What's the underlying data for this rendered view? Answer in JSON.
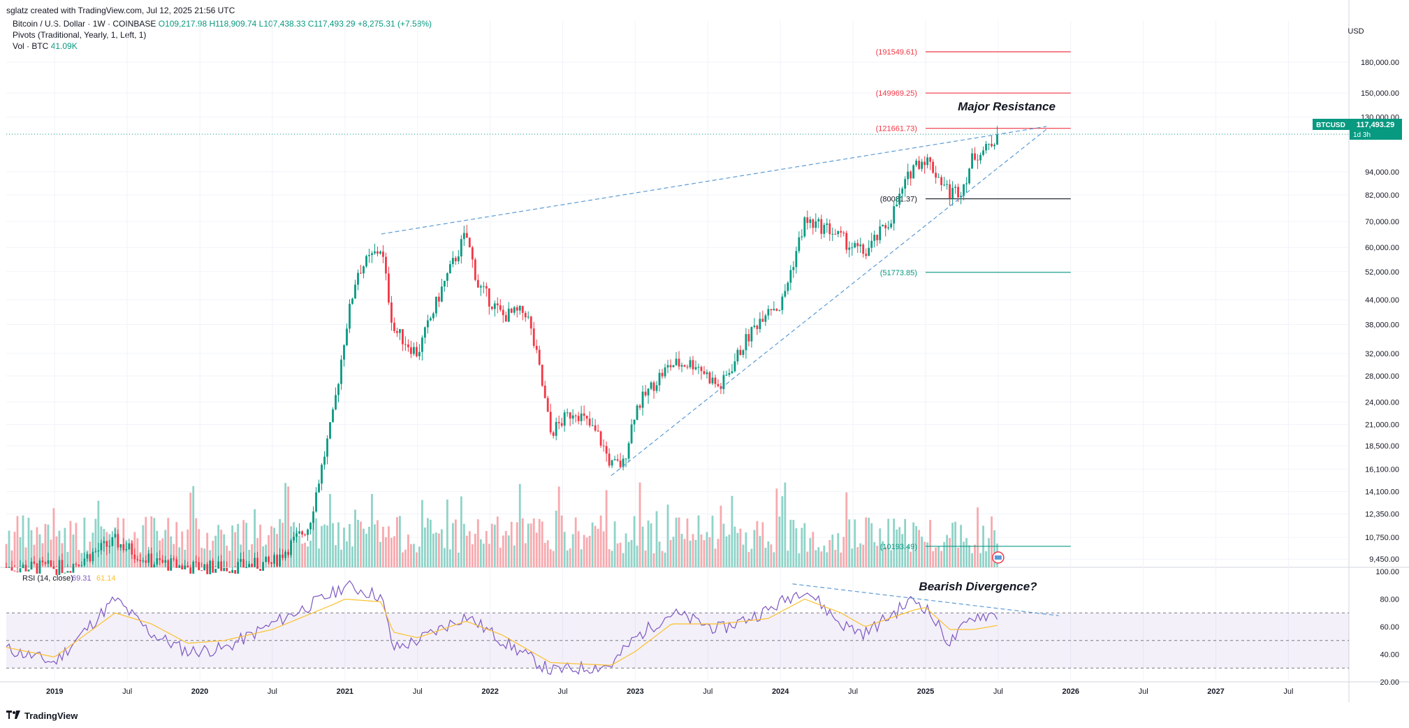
{
  "header": {
    "credit": "sglatz created with TradingView.com, Jul 12, 2025 21:56 UTC"
  },
  "symbol_line": {
    "name": "Bitcoin / U.S. Dollar · 1W · COINBASE",
    "open": "O109,217.98",
    "high": "H118,909.74",
    "low": "L107,438.33",
    "close": "C117,493.29",
    "change": "+8,275.31 (+7.58%)"
  },
  "pivots_line": "Pivots (Traditional, Yearly, 1, Left, 1)",
  "vol_line": {
    "label": "Vol · BTC",
    "value": "41.09K"
  },
  "currency": "USD",
  "price_tag": {
    "symbol": "BTCUSD",
    "price": "117,493.29",
    "countdown": "1d 3h"
  },
  "footer": {
    "brand": "TradingView"
  },
  "colors": {
    "up": "#089981",
    "down": "#f23645",
    "volume_up": "#8fd3c8",
    "volume_down": "#f7a9ae",
    "trend": "#5b9bd5",
    "rsi": "#7e57c2",
    "rsi_ma": "#fbc02d"
  },
  "chart_data": [
    {
      "type": "candlestick",
      "title": "Bitcoin / U.S. Dollar · 1W · COINBASE",
      "y_scale": "log",
      "ylim": [
        9000,
        230000
      ],
      "x_range": [
        "2018-09",
        "2027-12"
      ],
      "y_ticks": [
        "180,000.00",
        "150,000.00",
        "130,000.00",
        "94,000.00",
        "82,000.00",
        "70,000.00",
        "60,000.00",
        "52,000.00",
        "44,000.00",
        "38,000.00",
        "32,000.00",
        "28,000.00",
        "24,000.00",
        "21,000.00",
        "18,500.00",
        "16,100.00",
        "14,100.00",
        "12,350.00",
        "10,750.00",
        "9,450.00"
      ],
      "x_ticks": [
        "2019",
        "Jul",
        "2020",
        "Jul",
        "2021",
        "Jul",
        "2022",
        "Jul",
        "2023",
        "Jul",
        "2024",
        "Jul",
        "2025",
        "Jul",
        "2026",
        "Jul",
        "2027",
        "Jul"
      ],
      "price_path": [
        [
          "2018-09",
          9000
        ],
        [
          "2019-02",
          9000
        ],
        [
          "2019-06",
          10500
        ],
        [
          "2019-09",
          9300
        ],
        [
          "2019-12",
          9000
        ],
        [
          "2020-03",
          9000
        ],
        [
          "2020-07",
          9200
        ],
        [
          "2020-10",
          11500
        ],
        [
          "2020-12",
          22000
        ],
        [
          "2021-01",
          36000
        ],
        [
          "2021-02",
          52000
        ],
        [
          "2021-04",
          60000
        ],
        [
          "2021-05",
          37000
        ],
        [
          "2021-07",
          32000
        ],
        [
          "2021-09",
          47000
        ],
        [
          "2021-11",
          65000
        ],
        [
          "2021-12",
          48000
        ],
        [
          "2022-02",
          40000
        ],
        [
          "2022-04",
          41000
        ],
        [
          "2022-05",
          30000
        ],
        [
          "2022-06",
          20000
        ],
        [
          "2022-08",
          23000
        ],
        [
          "2022-10",
          19500
        ],
        [
          "2022-11",
          16500
        ],
        [
          "2022-12",
          16600
        ],
        [
          "2023-01",
          23000
        ],
        [
          "2023-03",
          28000
        ],
        [
          "2023-04",
          30000
        ],
        [
          "2023-06",
          30200
        ],
        [
          "2023-08",
          26000
        ],
        [
          "2023-10",
          34000
        ],
        [
          "2023-12",
          42500
        ],
        [
          "2024-01",
          42000
        ],
        [
          "2024-03",
          70000
        ],
        [
          "2024-05",
          67000
        ],
        [
          "2024-07",
          60000
        ],
        [
          "2024-08",
          58000
        ],
        [
          "2024-10",
          70000
        ],
        [
          "2024-12",
          98000
        ],
        [
          "2025-01",
          102000
        ],
        [
          "2025-03",
          83000
        ],
        [
          "2025-04",
          85000
        ],
        [
          "2025-05",
          104000
        ],
        [
          "2025-06",
          107000
        ],
        [
          "2025-07",
          117493
        ]
      ],
      "pivot_levels": [
        {
          "label": "(191549.61)",
          "value": 191549.61,
          "color": "#f23645"
        },
        {
          "label": "(149969.25)",
          "value": 149969.25,
          "color": "#f23645"
        },
        {
          "label": "(121661.73)",
          "value": 121661.73,
          "color": "#f23645"
        },
        {
          "label": "(80081.37)",
          "value": 80081.37,
          "color": "#131722"
        },
        {
          "label": "(51773.85)",
          "value": 51773.85,
          "color": "#089981"
        },
        {
          "label": "(10193.49)",
          "value": 10193.49,
          "color": "#089981"
        }
      ],
      "trend_lines": [
        {
          "from": [
            "2021-04",
            65000
          ],
          "to": [
            "2025-11",
            123000
          ]
        },
        {
          "from": [
            "2022-11",
            15500
          ],
          "to": [
            "2025-11",
            121000
          ]
        }
      ],
      "annotations": [
        "Major Resistance"
      ],
      "last_price": 117493.29
    },
    {
      "type": "line",
      "title": "RSI (14, close)",
      "ylim": [
        20,
        100
      ],
      "y_ticks": [
        "100.00",
        "80.00",
        "60.00",
        "40.00",
        "20.00"
      ],
      "bands": [
        30,
        50,
        70
      ],
      "legend_values": [
        "69.31",
        "61.14"
      ],
      "series": [
        {
          "name": "RSI",
          "values_path": [
            [
              "2018-09",
              44
            ],
            [
              "2019-01",
              34
            ],
            [
              "2019-06",
              80
            ],
            [
              "2019-09",
              55
            ],
            [
              "2019-12",
              42
            ],
            [
              "2020-03",
              44
            ],
            [
              "2020-07",
              62
            ],
            [
              "2020-12",
              84
            ],
            [
              "2021-01",
              90
            ],
            [
              "2021-04",
              82
            ],
            [
              "2021-05",
              44
            ],
            [
              "2021-07",
              50
            ],
            [
              "2021-11",
              68
            ],
            [
              "2022-02",
              50
            ],
            [
              "2022-06",
              28
            ],
            [
              "2022-11",
              32
            ],
            [
              "2023-01",
              52
            ],
            [
              "2023-04",
              70
            ],
            [
              "2023-08",
              58
            ],
            [
              "2023-12",
              72
            ],
            [
              "2024-03",
              88
            ],
            [
              "2024-06",
              62
            ],
            [
              "2024-08",
              55
            ],
            [
              "2024-12",
              80
            ],
            [
              "2025-01",
              74
            ],
            [
              "2025-03",
              48
            ],
            [
              "2025-05",
              68
            ],
            [
              "2025-07",
              69
            ]
          ]
        },
        {
          "name": "RSI MA",
          "values_path": [
            [
              "2018-09",
              45
            ],
            [
              "2019-01",
              38
            ],
            [
              "2019-06",
              70
            ],
            [
              "2019-09",
              62
            ],
            [
              "2019-12",
              48
            ],
            [
              "2020-03",
              50
            ],
            [
              "2020-07",
              58
            ],
            [
              "2020-12",
              76
            ],
            [
              "2021-01",
              80
            ],
            [
              "2021-04",
              78
            ],
            [
              "2021-05",
              56
            ],
            [
              "2021-07",
              52
            ],
            [
              "2021-11",
              64
            ],
            [
              "2022-02",
              54
            ],
            [
              "2022-06",
              34
            ],
            [
              "2022-11",
              32
            ],
            [
              "2023-01",
              42
            ],
            [
              "2023-04",
              62
            ],
            [
              "2023-08",
              62
            ],
            [
              "2023-12",
              66
            ],
            [
              "2024-03",
              80
            ],
            [
              "2024-06",
              70
            ],
            [
              "2024-08",
              60
            ],
            [
              "2024-12",
              72
            ],
            [
              "2025-01",
              74
            ],
            [
              "2025-03",
              58
            ],
            [
              "2025-05",
              58
            ],
            [
              "2025-07",
              61
            ]
          ]
        }
      ],
      "annotations": [
        "Bearish Divergence?"
      ]
    }
  ]
}
